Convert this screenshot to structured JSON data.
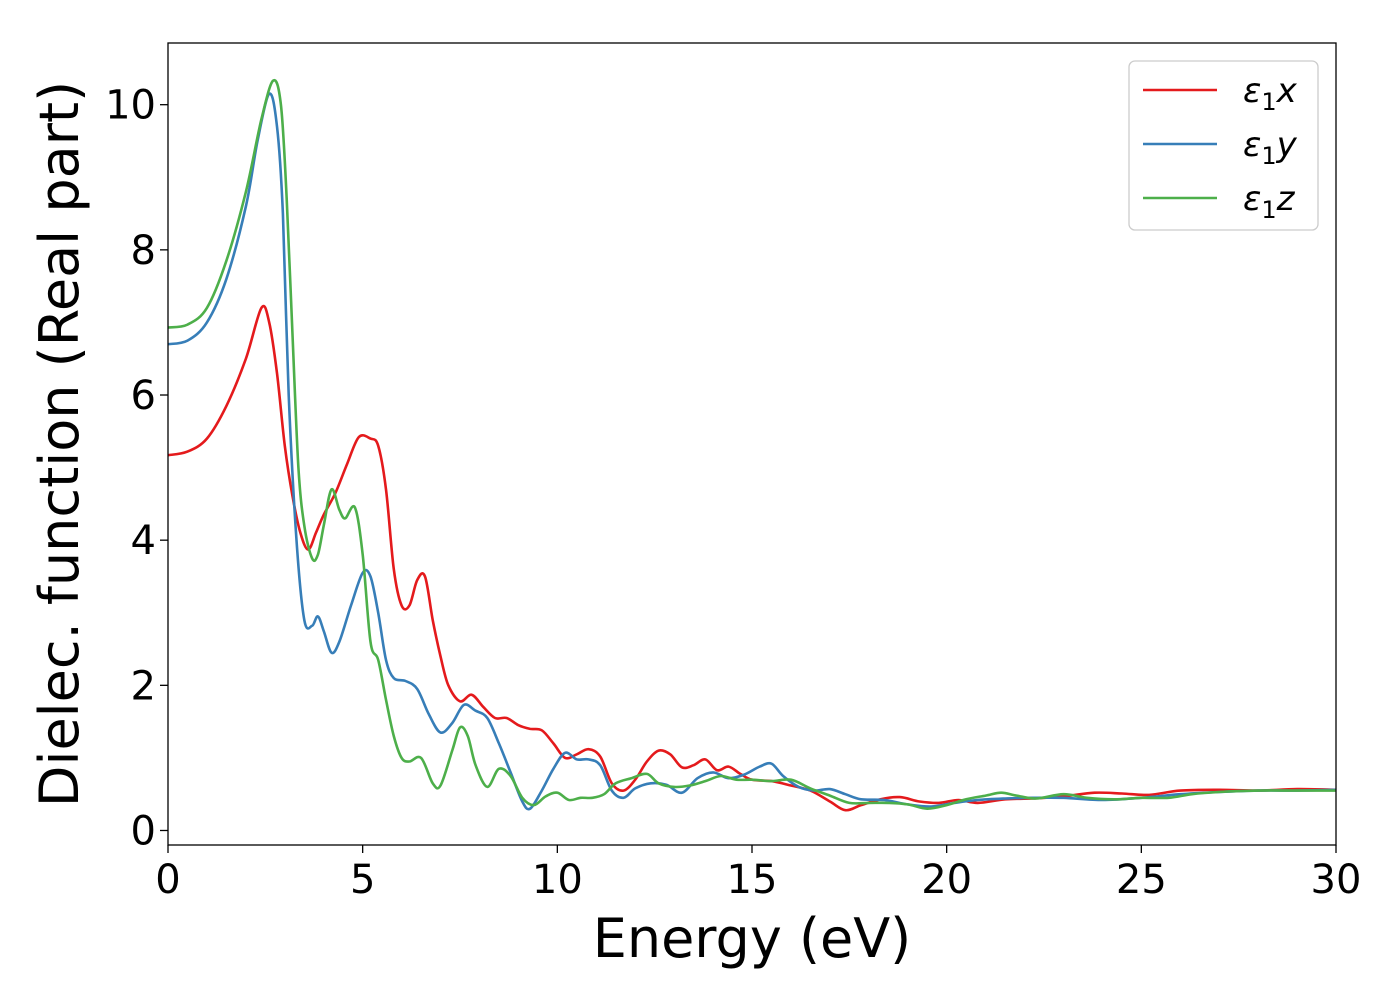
{
  "chart_data": {
    "type": "line",
    "title": "",
    "xlabel": "Energy (eV)",
    "ylabel": "Dielec. function (Real part)",
    "xlim": [
      0,
      30
    ],
    "ylim": [
      -0.2,
      10.85
    ],
    "xticks": [
      0,
      5,
      10,
      15,
      20,
      25,
      30
    ],
    "yticks": [
      0,
      2,
      4,
      6,
      8,
      10
    ],
    "grid": false,
    "legend_position": "top-right",
    "series": [
      {
        "name": "x",
        "legend": {
          "symbol": "ε",
          "sub": "1",
          "suffix": "x"
        },
        "color": "#e41a1c",
        "points": [
          [
            0,
            5.17
          ],
          [
            0.5,
            5.22
          ],
          [
            1.0,
            5.4
          ],
          [
            1.5,
            5.85
          ],
          [
            2.0,
            6.5
          ],
          [
            2.4,
            7.2
          ],
          [
            2.6,
            7.0
          ],
          [
            2.8,
            6.3
          ],
          [
            3.0,
            5.3
          ],
          [
            3.2,
            4.6
          ],
          [
            3.4,
            4.1
          ],
          [
            3.6,
            3.87
          ],
          [
            3.8,
            4.1
          ],
          [
            4.0,
            4.35
          ],
          [
            4.3,
            4.65
          ],
          [
            4.6,
            5.05
          ],
          [
            4.9,
            5.42
          ],
          [
            5.2,
            5.4
          ],
          [
            5.4,
            5.3
          ],
          [
            5.6,
            4.7
          ],
          [
            5.8,
            3.6
          ],
          [
            6.0,
            3.1
          ],
          [
            6.2,
            3.1
          ],
          [
            6.4,
            3.45
          ],
          [
            6.6,
            3.5
          ],
          [
            6.8,
            2.9
          ],
          [
            7.0,
            2.4
          ],
          [
            7.2,
            2.0
          ],
          [
            7.5,
            1.78
          ],
          [
            7.8,
            1.87
          ],
          [
            8.1,
            1.7
          ],
          [
            8.4,
            1.55
          ],
          [
            8.7,
            1.55
          ],
          [
            9.0,
            1.45
          ],
          [
            9.3,
            1.4
          ],
          [
            9.6,
            1.38
          ],
          [
            9.9,
            1.2
          ],
          [
            10.2,
            1.0
          ],
          [
            10.5,
            1.05
          ],
          [
            10.8,
            1.12
          ],
          [
            11.1,
            1.02
          ],
          [
            11.4,
            0.65
          ],
          [
            11.7,
            0.55
          ],
          [
            12.0,
            0.7
          ],
          [
            12.3,
            0.95
          ],
          [
            12.6,
            1.1
          ],
          [
            12.9,
            1.05
          ],
          [
            13.2,
            0.87
          ],
          [
            13.5,
            0.9
          ],
          [
            13.8,
            0.98
          ],
          [
            14.1,
            0.83
          ],
          [
            14.4,
            0.88
          ],
          [
            14.7,
            0.78
          ],
          [
            15.0,
            0.7
          ],
          [
            15.5,
            0.68
          ],
          [
            16.0,
            0.62
          ],
          [
            16.5,
            0.55
          ],
          [
            17.0,
            0.4
          ],
          [
            17.4,
            0.28
          ],
          [
            17.8,
            0.35
          ],
          [
            18.3,
            0.43
          ],
          [
            18.8,
            0.46
          ],
          [
            19.3,
            0.4
          ],
          [
            19.8,
            0.38
          ],
          [
            20.3,
            0.42
          ],
          [
            20.8,
            0.38
          ],
          [
            21.5,
            0.43
          ],
          [
            22.2,
            0.44
          ],
          [
            23.0,
            0.47
          ],
          [
            23.8,
            0.52
          ],
          [
            24.5,
            0.51
          ],
          [
            25.2,
            0.49
          ],
          [
            26.0,
            0.55
          ],
          [
            27.0,
            0.56
          ],
          [
            28.0,
            0.55
          ],
          [
            29.0,
            0.57
          ],
          [
            30.0,
            0.56
          ]
        ]
      },
      {
        "name": "y",
        "legend": {
          "symbol": "ε",
          "sub": "1",
          "suffix": "y"
        },
        "color": "#377eb8",
        "points": [
          [
            0,
            6.7
          ],
          [
            0.5,
            6.75
          ],
          [
            1.0,
            7.0
          ],
          [
            1.5,
            7.6
          ],
          [
            2.0,
            8.6
          ],
          [
            2.3,
            9.5
          ],
          [
            2.6,
            10.15
          ],
          [
            2.8,
            9.7
          ],
          [
            2.95,
            8.5
          ],
          [
            3.1,
            6.0
          ],
          [
            3.3,
            4.0
          ],
          [
            3.5,
            2.9
          ],
          [
            3.7,
            2.82
          ],
          [
            3.85,
            2.95
          ],
          [
            4.0,
            2.75
          ],
          [
            4.2,
            2.45
          ],
          [
            4.4,
            2.6
          ],
          [
            4.7,
            3.1
          ],
          [
            5.0,
            3.55
          ],
          [
            5.2,
            3.5
          ],
          [
            5.4,
            3.0
          ],
          [
            5.6,
            2.35
          ],
          [
            5.8,
            2.1
          ],
          [
            6.1,
            2.06
          ],
          [
            6.4,
            1.95
          ],
          [
            6.7,
            1.6
          ],
          [
            7.0,
            1.35
          ],
          [
            7.3,
            1.48
          ],
          [
            7.6,
            1.73
          ],
          [
            7.9,
            1.65
          ],
          [
            8.2,
            1.55
          ],
          [
            8.5,
            1.2
          ],
          [
            8.8,
            0.8
          ],
          [
            9.1,
            0.4
          ],
          [
            9.3,
            0.3
          ],
          [
            9.6,
            0.55
          ],
          [
            9.9,
            0.85
          ],
          [
            10.2,
            1.07
          ],
          [
            10.5,
            0.98
          ],
          [
            10.8,
            0.98
          ],
          [
            11.1,
            0.9
          ],
          [
            11.4,
            0.55
          ],
          [
            11.7,
            0.45
          ],
          [
            12.0,
            0.58
          ],
          [
            12.4,
            0.65
          ],
          [
            12.8,
            0.63
          ],
          [
            13.2,
            0.52
          ],
          [
            13.6,
            0.72
          ],
          [
            14.0,
            0.8
          ],
          [
            14.4,
            0.72
          ],
          [
            14.8,
            0.77
          ],
          [
            15.2,
            0.88
          ],
          [
            15.5,
            0.92
          ],
          [
            15.8,
            0.75
          ],
          [
            16.2,
            0.6
          ],
          [
            16.6,
            0.55
          ],
          [
            17.0,
            0.57
          ],
          [
            17.4,
            0.5
          ],
          [
            17.8,
            0.43
          ],
          [
            18.4,
            0.42
          ],
          [
            19.0,
            0.36
          ],
          [
            19.6,
            0.33
          ],
          [
            20.2,
            0.38
          ],
          [
            20.8,
            0.42
          ],
          [
            21.5,
            0.44
          ],
          [
            22.2,
            0.45
          ],
          [
            23.0,
            0.45
          ],
          [
            24.0,
            0.42
          ],
          [
            25.0,
            0.45
          ],
          [
            26.0,
            0.5
          ],
          [
            27.0,
            0.53
          ],
          [
            28.0,
            0.55
          ],
          [
            29.0,
            0.55
          ],
          [
            30.0,
            0.56
          ]
        ]
      },
      {
        "name": "z",
        "legend": {
          "symbol": "ε",
          "sub": "1",
          "suffix": "z"
        },
        "color": "#4daf4a",
        "points": [
          [
            0,
            6.93
          ],
          [
            0.5,
            6.97
          ],
          [
            1.0,
            7.2
          ],
          [
            1.5,
            7.85
          ],
          [
            2.0,
            8.8
          ],
          [
            2.4,
            9.8
          ],
          [
            2.7,
            10.33
          ],
          [
            2.9,
            10.0
          ],
          [
            3.05,
            8.7
          ],
          [
            3.2,
            6.8
          ],
          [
            3.35,
            5.0
          ],
          [
            3.5,
            4.2
          ],
          [
            3.7,
            3.75
          ],
          [
            3.85,
            3.8
          ],
          [
            4.0,
            4.2
          ],
          [
            4.2,
            4.7
          ],
          [
            4.4,
            4.42
          ],
          [
            4.55,
            4.3
          ],
          [
            4.8,
            4.45
          ],
          [
            5.0,
            3.8
          ],
          [
            5.2,
            2.6
          ],
          [
            5.4,
            2.35
          ],
          [
            5.6,
            1.8
          ],
          [
            5.8,
            1.3
          ],
          [
            6.0,
            1.0
          ],
          [
            6.2,
            0.95
          ],
          [
            6.5,
            1.0
          ],
          [
            6.8,
            0.65
          ],
          [
            7.0,
            0.62
          ],
          [
            7.3,
            1.1
          ],
          [
            7.5,
            1.42
          ],
          [
            7.7,
            1.3
          ],
          [
            7.9,
            0.9
          ],
          [
            8.2,
            0.6
          ],
          [
            8.5,
            0.85
          ],
          [
            8.8,
            0.75
          ],
          [
            9.1,
            0.45
          ],
          [
            9.4,
            0.35
          ],
          [
            9.7,
            0.47
          ],
          [
            10.0,
            0.52
          ],
          [
            10.3,
            0.42
          ],
          [
            10.6,
            0.45
          ],
          [
            10.9,
            0.45
          ],
          [
            11.2,
            0.5
          ],
          [
            11.5,
            0.65
          ],
          [
            11.9,
            0.72
          ],
          [
            12.3,
            0.78
          ],
          [
            12.6,
            0.65
          ],
          [
            13.0,
            0.6
          ],
          [
            13.4,
            0.62
          ],
          [
            13.8,
            0.68
          ],
          [
            14.2,
            0.75
          ],
          [
            14.6,
            0.7
          ],
          [
            15.0,
            0.7
          ],
          [
            15.5,
            0.68
          ],
          [
            16.0,
            0.7
          ],
          [
            16.5,
            0.58
          ],
          [
            17.0,
            0.48
          ],
          [
            17.5,
            0.38
          ],
          [
            18.0,
            0.38
          ],
          [
            18.5,
            0.38
          ],
          [
            19.0,
            0.36
          ],
          [
            19.5,
            0.3
          ],
          [
            20.0,
            0.35
          ],
          [
            20.5,
            0.43
          ],
          [
            21.0,
            0.48
          ],
          [
            21.4,
            0.52
          ],
          [
            21.8,
            0.48
          ],
          [
            22.3,
            0.44
          ],
          [
            23.0,
            0.5
          ],
          [
            23.6,
            0.45
          ],
          [
            24.3,
            0.43
          ],
          [
            25.0,
            0.45
          ],
          [
            25.7,
            0.45
          ],
          [
            26.3,
            0.5
          ],
          [
            27.0,
            0.53
          ],
          [
            28.0,
            0.55
          ],
          [
            29.0,
            0.55
          ],
          [
            30.0,
            0.55
          ]
        ]
      }
    ]
  }
}
